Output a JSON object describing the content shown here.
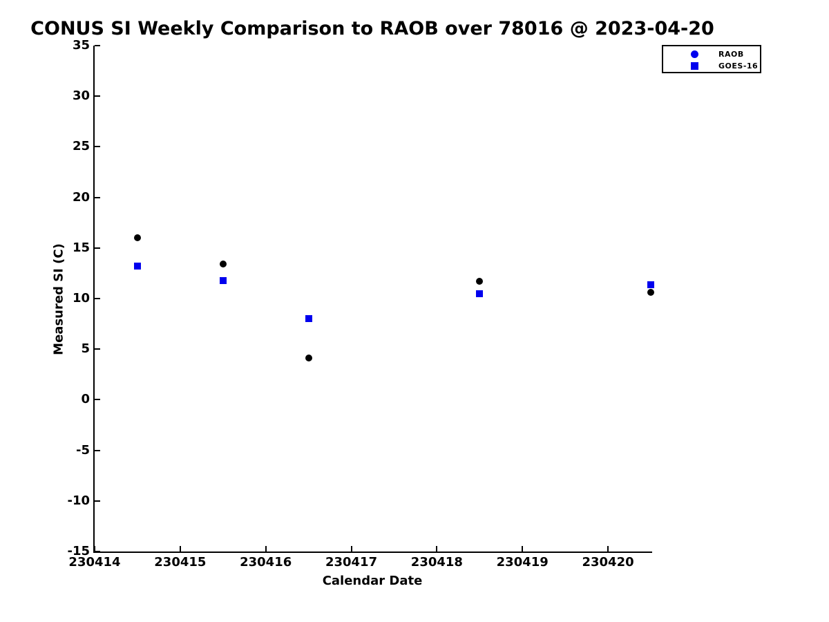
{
  "chart_data": {
    "type": "scatter",
    "title": "CONUS SI Weekly Comparison to RAOB over 78016 @ 2023-04-20",
    "xlabel": "Calendar Date",
    "ylabel": "Measured SI (C)",
    "xlim": [
      230414,
      230420.5
    ],
    "ylim": [
      -15,
      35
    ],
    "x_ticks": [
      230414,
      230415,
      230416,
      230417,
      230418,
      230419,
      230420
    ],
    "y_ticks": [
      35,
      30,
      25,
      20,
      15,
      10,
      5,
      0,
      -5,
      -10,
      -15
    ],
    "grid": false,
    "legend_position": "top-right-outside",
    "colors": {
      "axis": "#000000",
      "background": "#ffffff",
      "raob_plot_marker": "#000000",
      "raob_legend_marker": "#0000ee",
      "goes16_marker": "#0000ee"
    },
    "series": [
      {
        "name": "RAOB",
        "marker": "circle",
        "color": "#000000",
        "legend_color": "#0000ee",
        "x": [
          230414.5,
          230415.5,
          230416.5,
          230418.5,
          230420.5
        ],
        "y": [
          16.0,
          13.4,
          4.1,
          11.7,
          10.6
        ]
      },
      {
        "name": "GOES-16",
        "marker": "square",
        "color": "#0000ee",
        "legend_color": "#0000ee",
        "x": [
          230414.5,
          230415.5,
          230416.5,
          230418.5,
          230420.5
        ],
        "y": [
          13.2,
          11.8,
          8.0,
          10.5,
          11.4
        ]
      }
    ]
  }
}
